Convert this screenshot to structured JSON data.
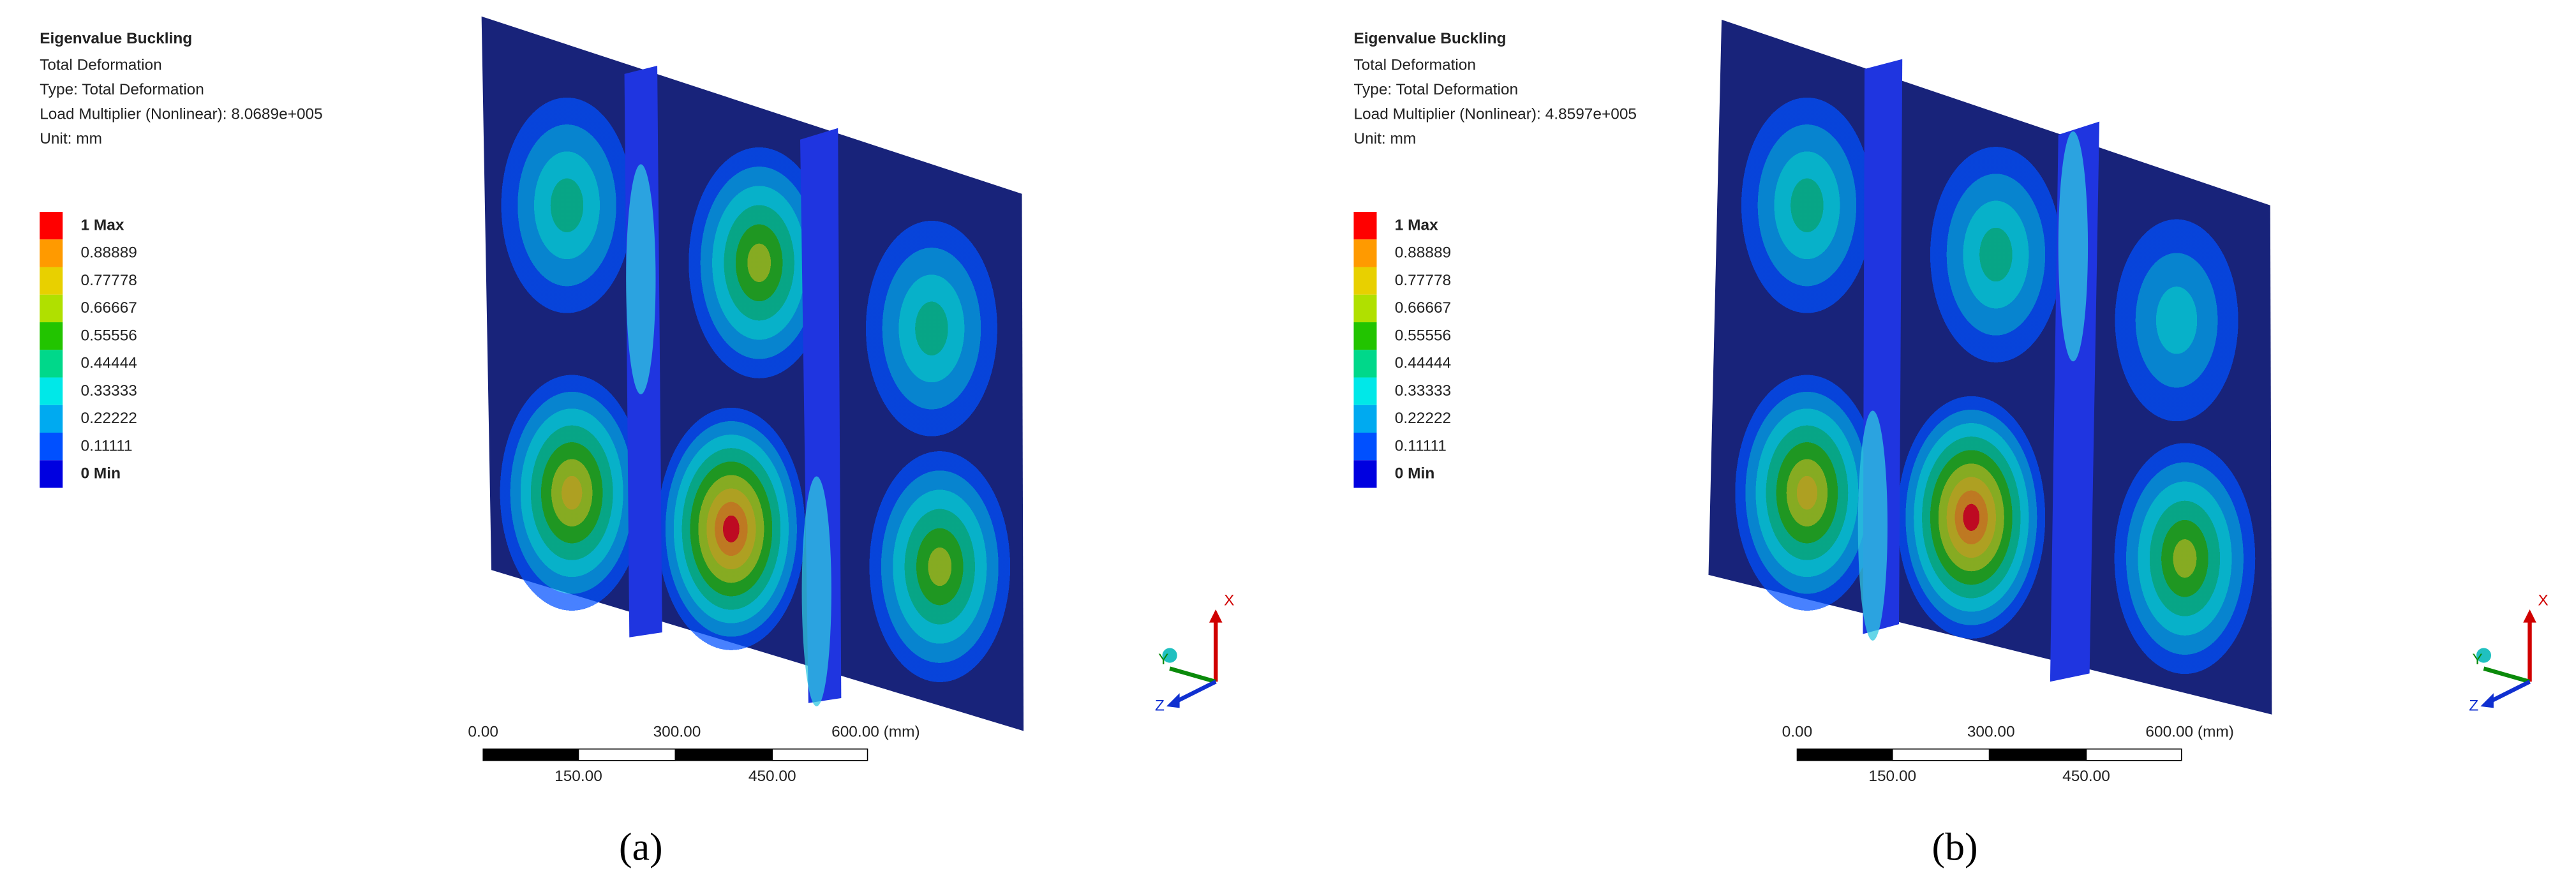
{
  "panels": [
    {
      "header": {
        "title": "Eigenvalue Buckling",
        "lines": [
          "Total Deformation",
          "Type: Total Deformation",
          "Load Multiplier (Nonlinear): 8.0689e+005",
          "Unit: mm"
        ]
      },
      "legend": [
        "1 Max",
        "0.88889",
        "0.77778",
        "0.66667",
        "0.55556",
        "0.44444",
        "0.33333",
        "0.22222",
        "0.11111",
        "0 Min"
      ],
      "scale_bar": {
        "top": [
          "0.00",
          "300.00",
          "600.00 (mm)"
        ],
        "bottom": [
          "150.00",
          "450.00"
        ]
      },
      "triad": [
        "X",
        "Y",
        "Z"
      ],
      "caption": "(a)"
    },
    {
      "header": {
        "title": "Eigenvalue Buckling",
        "lines": [
          "Total Deformation",
          "Type: Total Deformation",
          "Load Multiplier (Nonlinear): 4.8597e+005",
          "Unit: mm"
        ]
      },
      "legend": [
        "1 Max",
        "0.88889",
        "0.77778",
        "0.66667",
        "0.55556",
        "0.44444",
        "0.33333",
        "0.22222",
        "0.11111",
        "0 Min"
      ],
      "scale_bar": {
        "top": [
          "0.00",
          "300.00",
          "600.00 (mm)"
        ],
        "bottom": [
          "150.00",
          "450.00"
        ]
      },
      "triad": [
        "X",
        "Y",
        "Z"
      ],
      "caption": "(b)"
    }
  ]
}
